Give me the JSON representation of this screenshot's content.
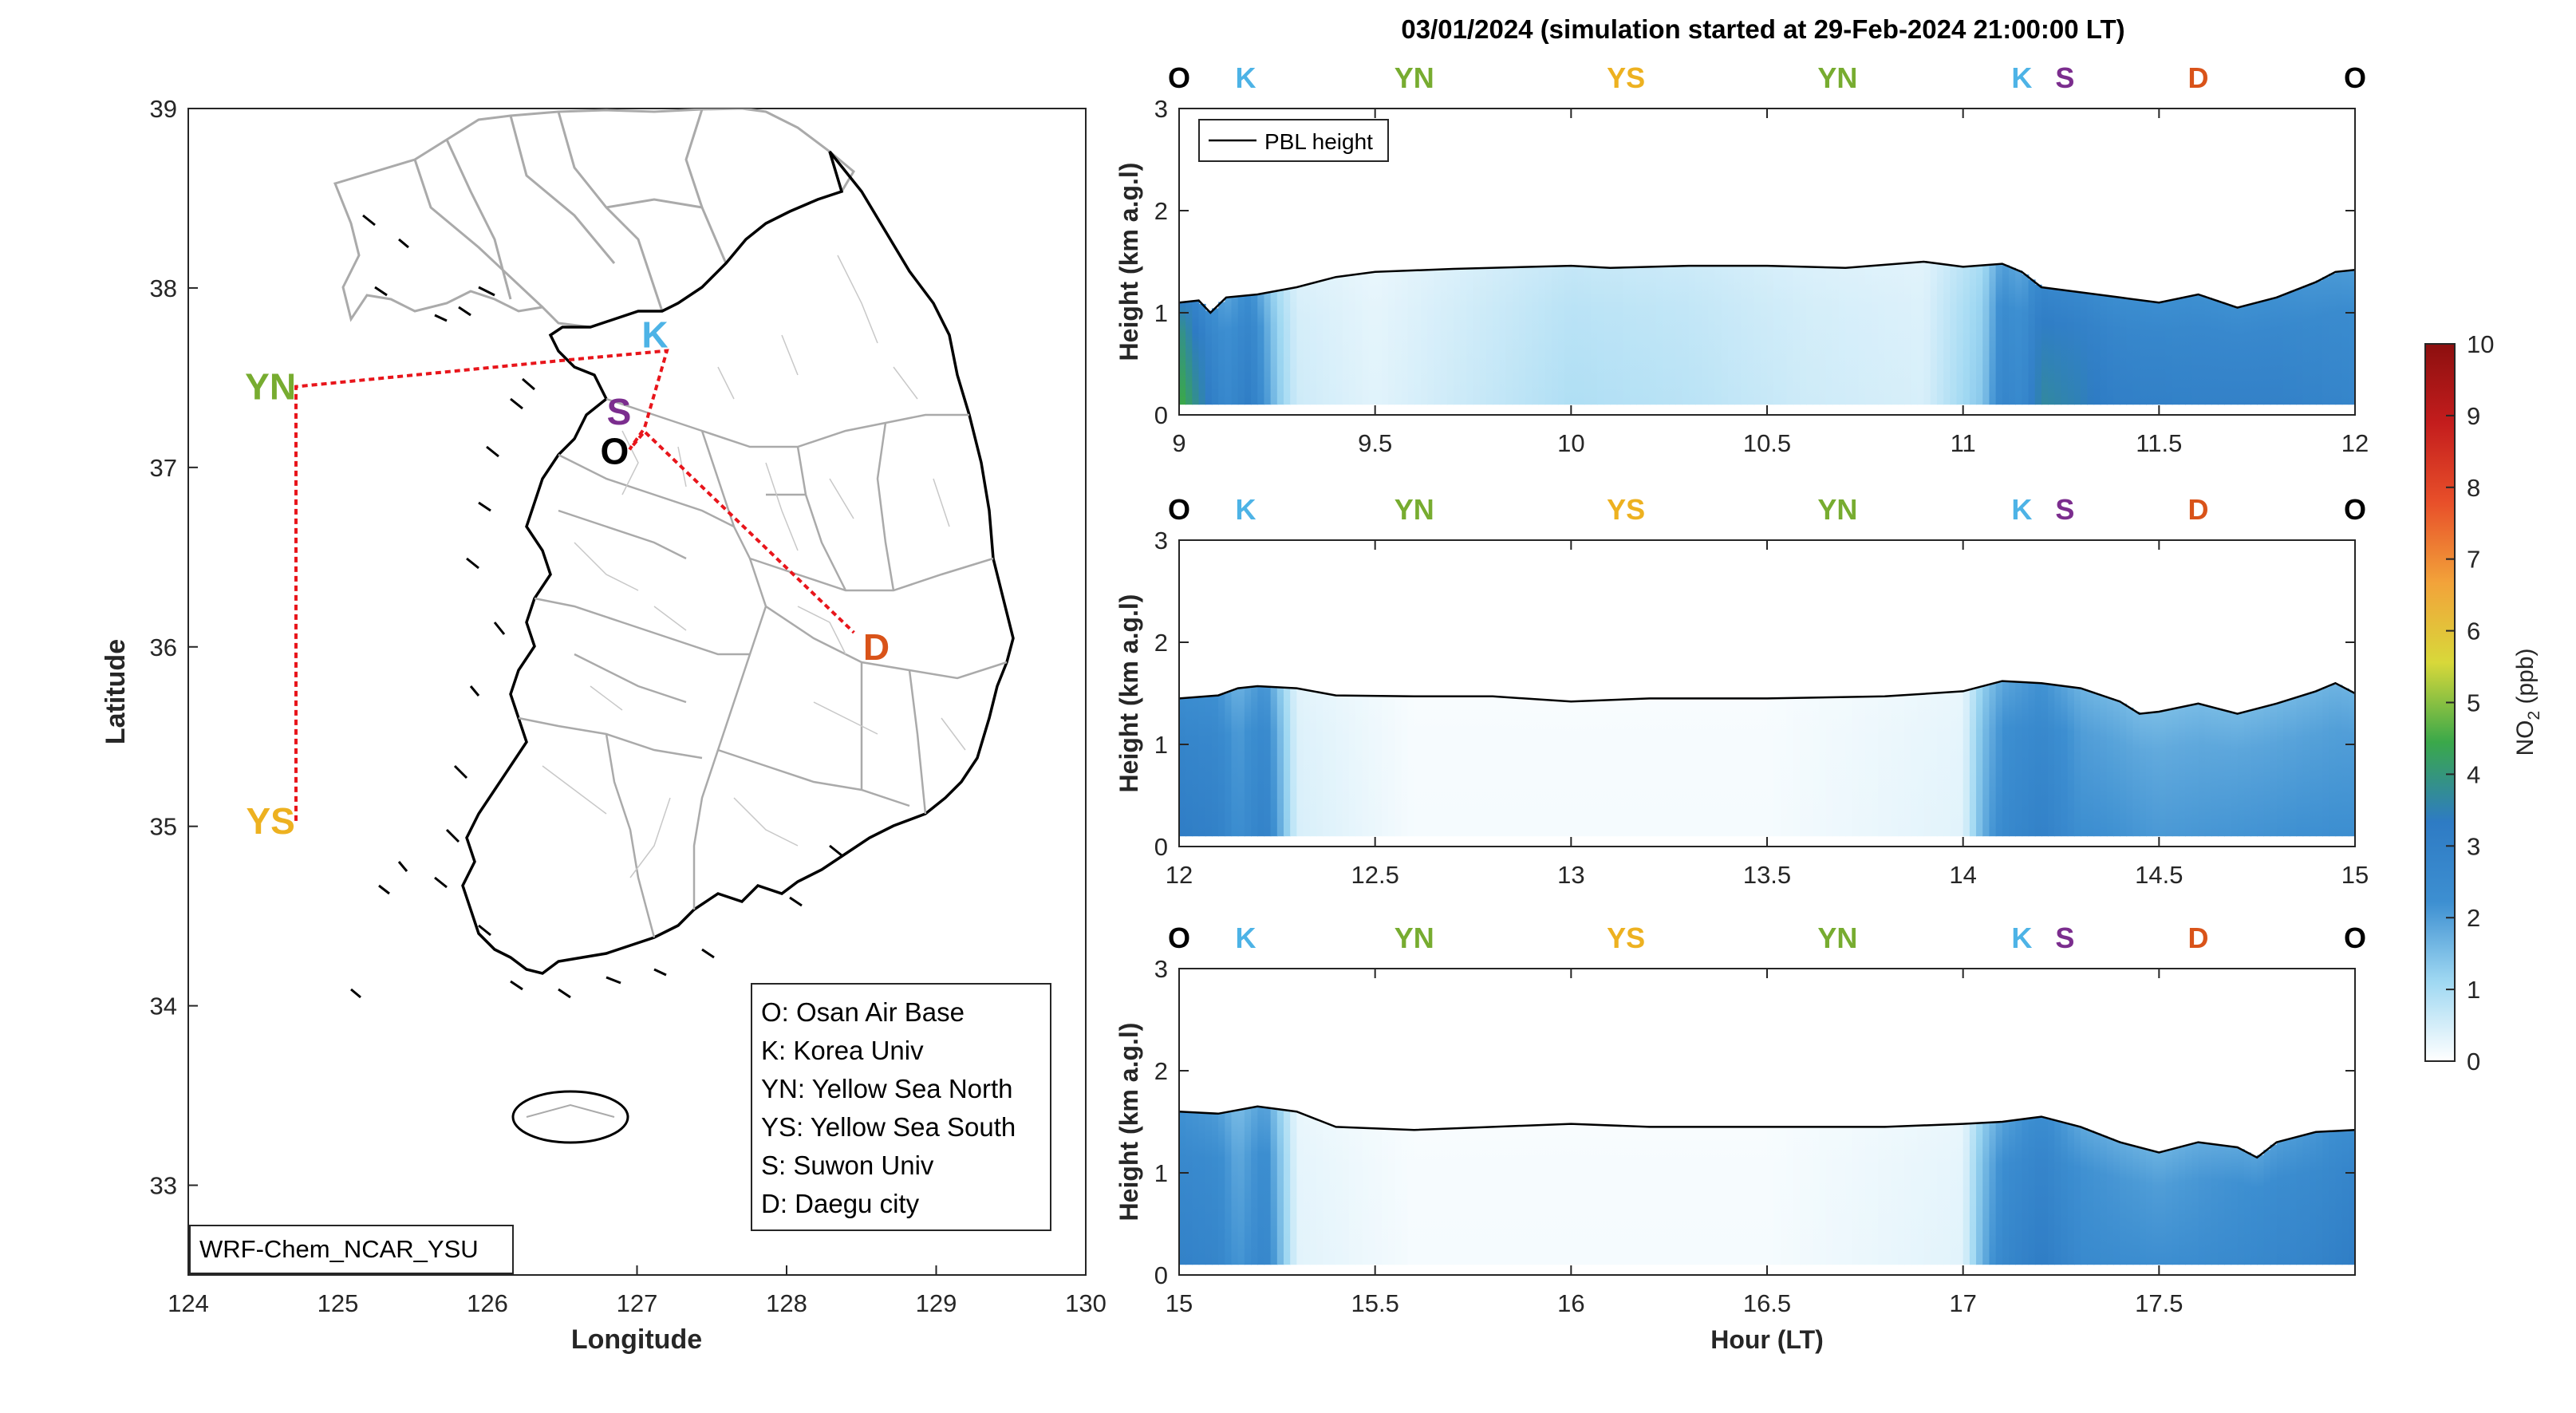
{
  "figure": {
    "title": "03/01/2024 (simulation started at 29-Feb-2024 21:00:00 LT)"
  },
  "map": {
    "xlabel": "Longitude",
    "ylabel": "Latitude",
    "xlim": [
      124,
      130
    ],
    "ylim": [
      32.5,
      39
    ],
    "xticks": [
      "124",
      "125",
      "126",
      "127",
      "128",
      "129",
      "130"
    ],
    "yticks": [
      "33",
      "34",
      "35",
      "36",
      "37",
      "38",
      "39"
    ],
    "model_label": "WRF-Chem_NCAR_YSU",
    "route_color": "#e8151b",
    "route": [
      [
        124.72,
        35.03
      ],
      [
        124.72,
        37.45
      ],
      [
        126.55,
        37.6
      ],
      [
        127.2,
        37.65
      ],
      [
        127.05,
        37.22
      ],
      [
        126.95,
        37.1
      ],
      [
        127.05,
        37.2
      ],
      [
        128.45,
        36.08
      ]
    ],
    "sites": [
      {
        "code": "K",
        "name": "Korea Univ",
        "color": "#4db3e6",
        "lon": 127.12,
        "lat": 37.74
      },
      {
        "code": "S",
        "name": "Suwon Univ",
        "color": "#7b2d8e",
        "lon": 126.88,
        "lat": 37.31
      },
      {
        "code": "O",
        "name": "Osan Air Base",
        "color": "#000000",
        "lon": 126.85,
        "lat": 37.09
      },
      {
        "code": "YN",
        "name": "Yellow Sea North",
        "color": "#77ac30",
        "lon": 124.55,
        "lat": 37.45
      },
      {
        "code": "YS",
        "name": "Yellow Sea South",
        "color": "#edb120",
        "lon": 124.55,
        "lat": 35.03
      },
      {
        "code": "D",
        "name": "Daegu city",
        "color": "#d95319",
        "lon": 128.6,
        "lat": 36.0
      }
    ],
    "legend": [
      "O: Osan Air Base",
      "K: Korea Univ",
      "YN: Yellow Sea North",
      "YS: Yellow Sea South",
      "S: Suwon Univ",
      "D: Daegu city"
    ]
  },
  "chart_data": [
    {
      "type": "heatmap",
      "variable": "NO2",
      "ylabel": "Height (km a.g.l)",
      "xlabel": "",
      "xlim": [
        9,
        12
      ],
      "ylim": [
        0,
        3
      ],
      "xticks": [
        "9",
        "9.5",
        "10",
        "10.5",
        "11",
        "11.5",
        "12"
      ],
      "yticks": [
        "0",
        "1",
        "2",
        "3"
      ],
      "legend": "PBL height",
      "route_labels": [
        {
          "text": "O",
          "x": 9.0,
          "color": "#000000"
        },
        {
          "text": "K",
          "x": 9.17,
          "color": "#4db3e6"
        },
        {
          "text": "YN",
          "x": 9.6,
          "color": "#77ac30"
        },
        {
          "text": "YS",
          "x": 10.14,
          "color": "#edb120"
        },
        {
          "text": "YN",
          "x": 10.68,
          "color": "#77ac30"
        },
        {
          "text": "K",
          "x": 11.15,
          "color": "#4db3e6"
        },
        {
          "text": "S",
          "x": 11.26,
          "color": "#7b2d8e"
        },
        {
          "text": "D",
          "x": 11.6,
          "color": "#d95319"
        },
        {
          "text": "O",
          "x": 12.0,
          "color": "#000000"
        }
      ],
      "pbl": {
        "x": [
          9.0,
          9.05,
          9.08,
          9.12,
          9.2,
          9.3,
          9.4,
          9.5,
          9.7,
          9.9,
          10.0,
          10.1,
          10.3,
          10.5,
          10.7,
          10.9,
          11.0,
          11.1,
          11.15,
          11.2,
          11.3,
          11.4,
          11.5,
          11.6,
          11.7,
          11.8,
          11.9,
          11.95,
          12.0
        ],
        "y": [
          1.1,
          1.12,
          1.0,
          1.15,
          1.18,
          1.25,
          1.35,
          1.4,
          1.43,
          1.45,
          1.46,
          1.44,
          1.46,
          1.46,
          1.44,
          1.5,
          1.45,
          1.48,
          1.4,
          1.25,
          1.2,
          1.15,
          1.1,
          1.18,
          1.05,
          1.15,
          1.3,
          1.4,
          1.42
        ]
      },
      "conc": {
        "x": [
          9.0,
          9.05,
          9.1,
          9.12,
          9.18,
          9.25,
          9.3,
          9.5,
          9.8,
          10.0,
          10.3,
          10.6,
          10.9,
          11.05,
          11.1,
          11.15,
          11.2,
          11.3,
          11.4,
          11.6,
          11.8,
          12.0
        ],
        "v": [
          4.0,
          3.2,
          2.5,
          2.2,
          2.8,
          1.2,
          0.5,
          0.3,
          0.6,
          0.8,
          0.7,
          0.5,
          0.4,
          1.2,
          2.4,
          2.2,
          3.2,
          3.0,
          2.7,
          2.6,
          2.6,
          2.4
        ]
      }
    },
    {
      "type": "heatmap",
      "variable": "NO2",
      "ylabel": "Height (km a.g.l)",
      "xlabel": "",
      "xlim": [
        12,
        15
      ],
      "ylim": [
        0,
        3
      ],
      "xticks": [
        "12",
        "12.5",
        "13",
        "13.5",
        "14",
        "14.5",
        "15"
      ],
      "yticks": [
        "0",
        "1",
        "2",
        "3"
      ],
      "route_labels": [
        {
          "text": "O",
          "x": 12.0,
          "color": "#000000"
        },
        {
          "text": "K",
          "x": 12.17,
          "color": "#4db3e6"
        },
        {
          "text": "YN",
          "x": 12.6,
          "color": "#77ac30"
        },
        {
          "text": "YS",
          "x": 13.14,
          "color": "#edb120"
        },
        {
          "text": "YN",
          "x": 13.68,
          "color": "#77ac30"
        },
        {
          "text": "K",
          "x": 14.15,
          "color": "#4db3e6"
        },
        {
          "text": "S",
          "x": 14.26,
          "color": "#7b2d8e"
        },
        {
          "text": "D",
          "x": 14.6,
          "color": "#d95319"
        },
        {
          "text": "O",
          "x": 15.0,
          "color": "#000000"
        }
      ],
      "pbl": {
        "x": [
          12.0,
          12.1,
          12.15,
          12.2,
          12.3,
          12.4,
          12.6,
          12.8,
          13.0,
          13.2,
          13.5,
          13.8,
          14.0,
          14.1,
          14.2,
          14.3,
          14.4,
          14.45,
          14.5,
          14.6,
          14.7,
          14.8,
          14.9,
          14.95,
          15.0
        ],
        "y": [
          1.45,
          1.48,
          1.55,
          1.57,
          1.55,
          1.48,
          1.47,
          1.47,
          1.42,
          1.45,
          1.45,
          1.47,
          1.52,
          1.62,
          1.6,
          1.55,
          1.42,
          1.3,
          1.32,
          1.4,
          1.3,
          1.4,
          1.52,
          1.6,
          1.5
        ]
      },
      "conc": {
        "x": [
          12.0,
          12.1,
          12.15,
          12.22,
          12.3,
          12.6,
          13.0,
          13.5,
          14.0,
          14.05,
          14.1,
          14.2,
          14.3,
          14.5,
          14.8,
          15.0
        ],
        "v": [
          2.8,
          2.6,
          2.0,
          2.6,
          0.4,
          0.1,
          0.1,
          0.1,
          0.3,
          1.5,
          2.2,
          2.6,
          2.0,
          1.8,
          1.9,
          2.0
        ]
      }
    },
    {
      "type": "heatmap",
      "variable": "NO2",
      "ylabel": "Height (km a.g.l)",
      "xlabel": "Hour (LT)",
      "xlim": [
        15,
        18
      ],
      "ylim": [
        0,
        3
      ],
      "xticks": [
        "15",
        "15.5",
        "16",
        "16.5",
        "17",
        "17.5"
      ],
      "yticks": [
        "0",
        "1",
        "2",
        "3"
      ],
      "route_labels": [
        {
          "text": "O",
          "x": 15.0,
          "color": "#000000"
        },
        {
          "text": "K",
          "x": 15.17,
          "color": "#4db3e6"
        },
        {
          "text": "YN",
          "x": 15.6,
          "color": "#77ac30"
        },
        {
          "text": "YS",
          "x": 16.14,
          "color": "#edb120"
        },
        {
          "text": "YN",
          "x": 16.68,
          "color": "#77ac30"
        },
        {
          "text": "K",
          "x": 17.15,
          "color": "#4db3e6"
        },
        {
          "text": "S",
          "x": 17.26,
          "color": "#7b2d8e"
        },
        {
          "text": "D",
          "x": 17.6,
          "color": "#d95319"
        },
        {
          "text": "O",
          "x": 18.0,
          "color": "#000000"
        }
      ],
      "pbl": {
        "x": [
          15.0,
          15.1,
          15.2,
          15.3,
          15.4,
          15.6,
          15.8,
          16.0,
          16.2,
          16.5,
          16.8,
          17.0,
          17.1,
          17.2,
          17.3,
          17.4,
          17.5,
          17.6,
          17.7,
          17.75,
          17.8,
          17.9,
          18.0
        ],
        "y": [
          1.6,
          1.58,
          1.65,
          1.6,
          1.45,
          1.42,
          1.45,
          1.48,
          1.45,
          1.45,
          1.45,
          1.48,
          1.5,
          1.55,
          1.45,
          1.3,
          1.2,
          1.3,
          1.25,
          1.15,
          1.3,
          1.4,
          1.42
        ]
      },
      "conc": {
        "x": [
          15.0,
          15.1,
          15.15,
          15.22,
          15.3,
          15.6,
          16.0,
          16.5,
          17.0,
          17.05,
          17.1,
          17.2,
          17.3,
          17.5,
          17.7,
          17.9,
          18.0
        ],
        "v": [
          2.6,
          2.4,
          1.8,
          2.4,
          0.3,
          0.1,
          0.1,
          0.1,
          0.3,
          1.5,
          2.3,
          2.8,
          2.2,
          2.0,
          2.2,
          2.5,
          2.8
        ]
      }
    }
  ],
  "colorbar": {
    "label": "NO",
    "label_sub": "2",
    "label_unit": " (ppb)",
    "range": [
      0,
      10
    ],
    "ticks": [
      "0",
      "1",
      "2",
      "3",
      "4",
      "5",
      "6",
      "7",
      "8",
      "9",
      "10"
    ],
    "colors": [
      "#ffffff",
      "#9fd8f2",
      "#3d8fd1",
      "#2e7bc4",
      "#3aa84a",
      "#d8d83a",
      "#f2a33a",
      "#e8502a",
      "#c41d1d",
      "#8c0f0f"
    ]
  }
}
